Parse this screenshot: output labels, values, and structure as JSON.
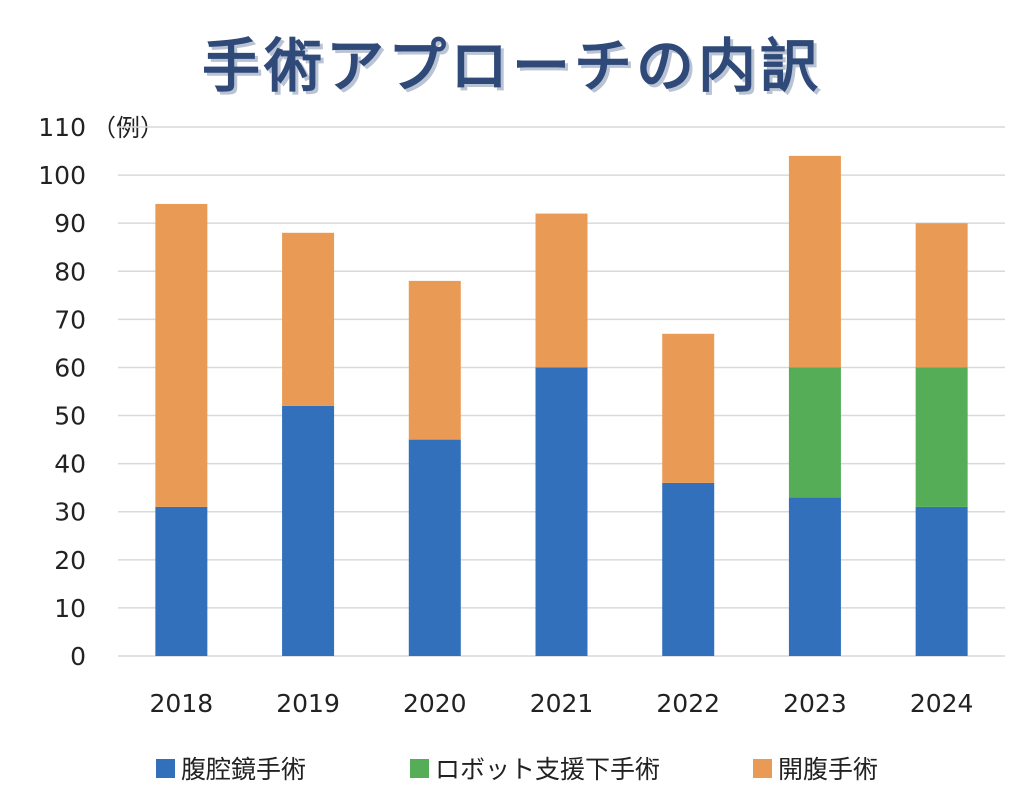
{
  "chart_data": {
    "type": "bar",
    "stacked": true,
    "title": "手術アプローチの内訳",
    "ylabel": "（例）",
    "xlabel": "",
    "ylim": [
      0,
      110
    ],
    "yticks": [
      0,
      10,
      20,
      30,
      40,
      50,
      60,
      70,
      80,
      90,
      100,
      110
    ],
    "grid": true,
    "legend_position": "bottom",
    "categories": [
      "2018",
      "2019",
      "2020",
      "2021",
      "2022",
      "2023",
      "2024"
    ],
    "series": [
      {
        "name": "腹腔鏡手術",
        "color": "#3370bb",
        "values": [
          31,
          52,
          45,
          60,
          36,
          33,
          31
        ]
      },
      {
        "name": "ロボット支援下手術",
        "color": "#55ad58",
        "values": [
          0,
          0,
          0,
          0,
          0,
          27,
          29
        ]
      },
      {
        "name": "開腹手術",
        "color": "#e99b55",
        "values": [
          63,
          36,
          33,
          32,
          31,
          44,
          30
        ]
      }
    ]
  }
}
